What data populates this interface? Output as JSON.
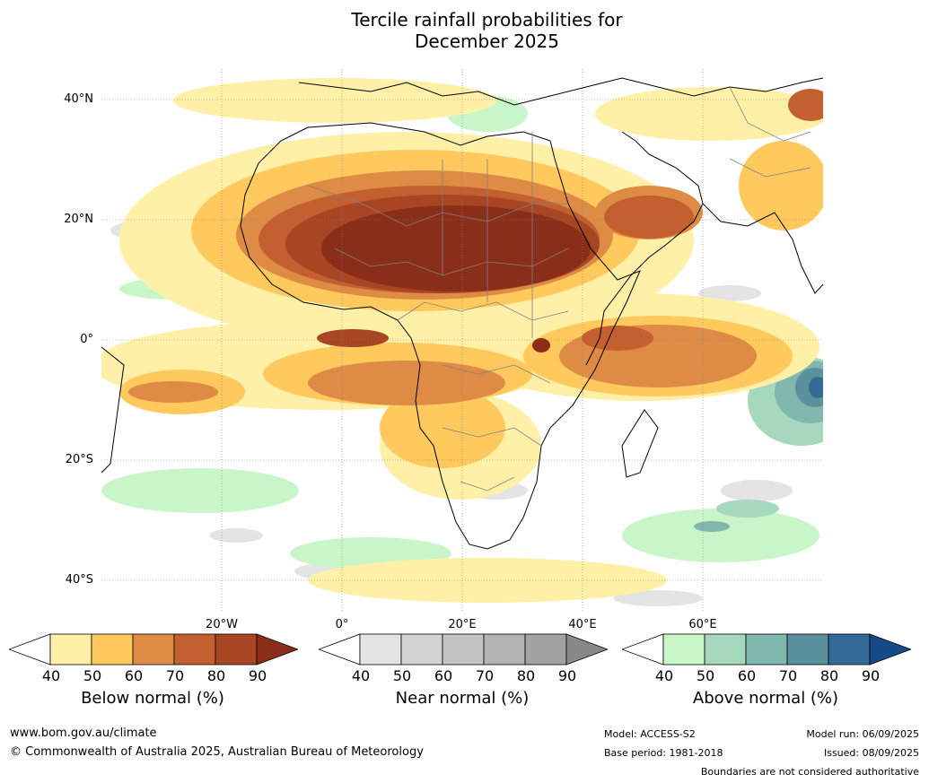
{
  "title": {
    "line1": "Tercile rainfall probabilities for",
    "line2": "December 2025"
  },
  "map": {
    "lat_labels": [
      "40°N",
      "20°N",
      "0°",
      "20°S",
      "40°S"
    ],
    "lon_labels": [
      "20°W",
      "0°",
      "20°E",
      "40°E",
      "60°E"
    ]
  },
  "colorbars": [
    {
      "name": "below",
      "title": "Below normal (%)",
      "ticks": [
        "40",
        "50",
        "60",
        "70",
        "80",
        "90"
      ],
      "colors": [
        "#ffffff",
        "#fff0a8",
        "#ffc95e",
        "#de8c45",
        "#c4602f",
        "#a84522",
        "#8a2e1a"
      ]
    },
    {
      "name": "near",
      "title": "Near normal (%)",
      "ticks": [
        "40",
        "50",
        "60",
        "70",
        "80",
        "90"
      ],
      "colors": [
        "#ffffff",
        "#e4e4e4",
        "#d3d3d3",
        "#c4c4c4",
        "#b4b4b4",
        "#a2a2a2",
        "#888888"
      ]
    },
    {
      "name": "above",
      "title": "Above normal (%)",
      "ticks": [
        "40",
        "50",
        "60",
        "70",
        "80",
        "90"
      ],
      "colors": [
        "#ffffff",
        "#c8f6c8",
        "#a6d8bd",
        "#80b8ae",
        "#5b919c",
        "#326a98",
        "#144b86"
      ]
    }
  ],
  "footer": {
    "url": "www.bom.gov.au/climate",
    "copyright": "© Commonwealth of Australia 2025, Australian Bureau of Meteorology",
    "model": "Model: ACCESS-S2",
    "base_period": "Base period: 1981-2018",
    "model_run": "Model run: 06/09/2025",
    "issued": "Issued: 08/09/2025",
    "disclaimer": "Boundaries are not considered authoritative"
  }
}
